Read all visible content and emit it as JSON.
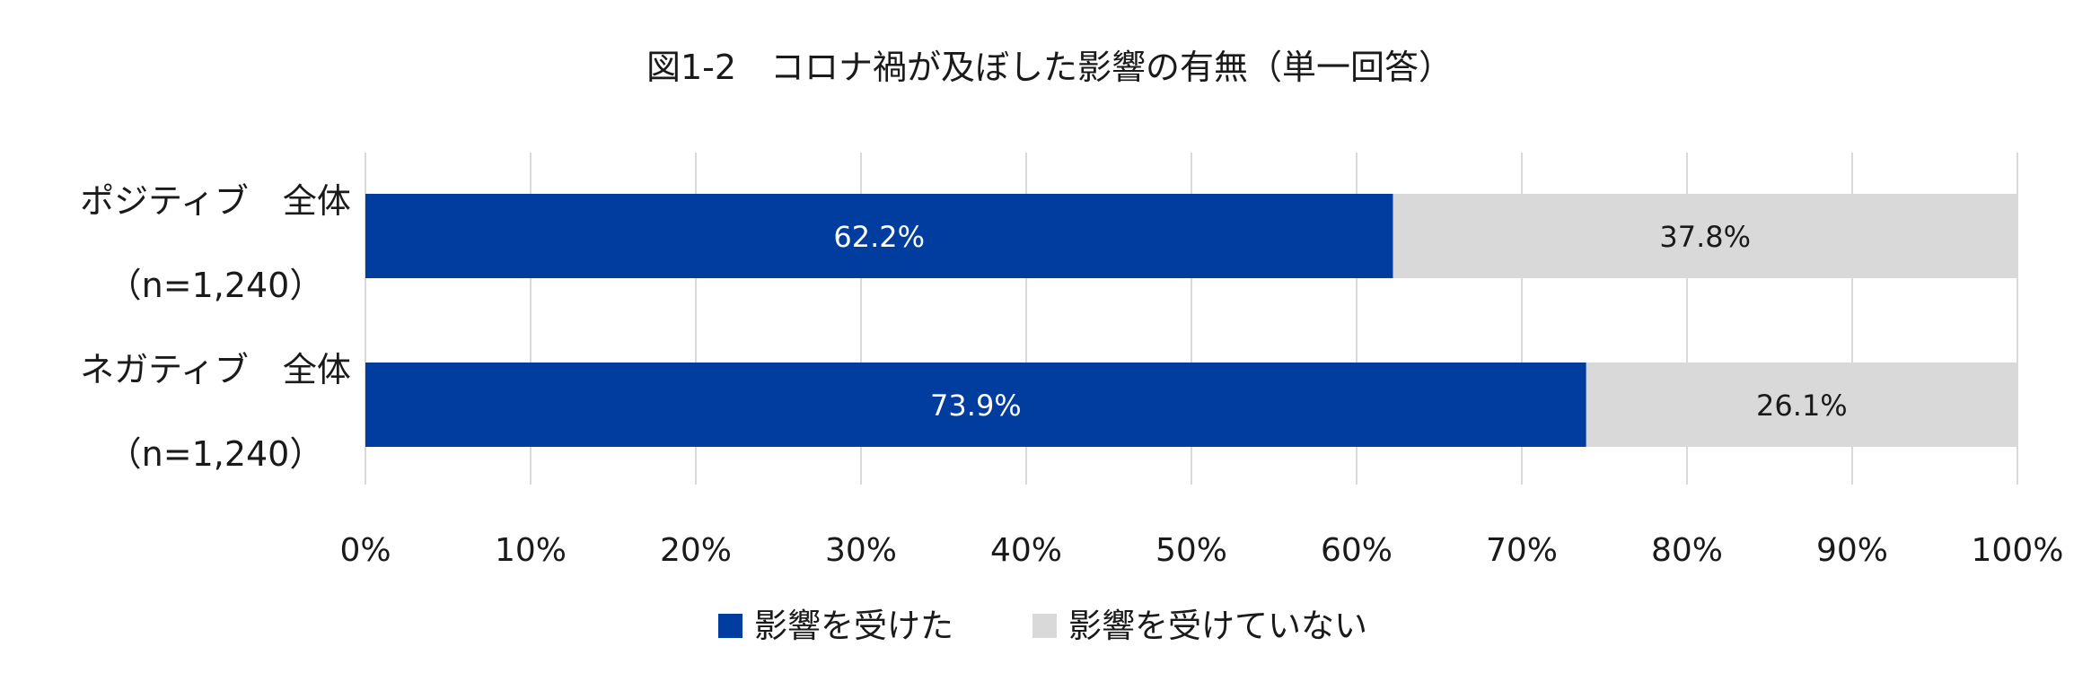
{
  "chart_data": {
    "type": "bar",
    "orientation": "horizontal",
    "stacked": true,
    "title": "図1-2　コロナ禍が及ぼした影響の有無（単一回答）",
    "categories": [
      {
        "name": "ポジティブ　全体",
        "n": "（n=1,240）"
      },
      {
        "name": "ネガティブ　全体",
        "n": "（n=1,240）"
      }
    ],
    "series": [
      {
        "name": "影響を受けた",
        "color": "#003d9e",
        "label_color": "#ffffff",
        "values": [
          62.2,
          73.9
        ],
        "labels": [
          "62.2%",
          "73.9%"
        ]
      },
      {
        "name": "影響を受けていない",
        "color": "#d9d9d9",
        "label_color": "#1a1a1a",
        "values": [
          37.8,
          26.1
        ],
        "labels": [
          "37.8%",
          "26.1%"
        ]
      }
    ],
    "xlim": [
      0,
      100
    ],
    "x_ticks": [
      "0%",
      "10%",
      "20%",
      "30%",
      "40%",
      "50%",
      "60%",
      "70%",
      "80%",
      "90%",
      "100%"
    ],
    "grid": true,
    "legend_position": "bottom",
    "xlabel": "",
    "ylabel": ""
  }
}
